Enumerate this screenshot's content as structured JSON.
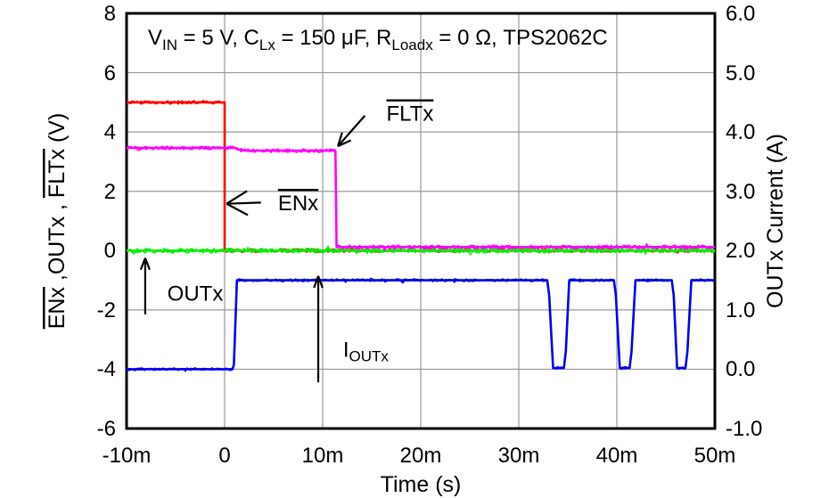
{
  "chart_data": {
    "type": "line",
    "title_parts": [
      {
        "text": "V"
      },
      {
        "text": "IN",
        "sub": true
      },
      {
        "text": " = 5 V, C"
      },
      {
        "text": "Lx",
        "sub": true
      },
      {
        "text": " = 150 μF, R"
      },
      {
        "text": "Loadx",
        "sub": true
      },
      {
        "text": " = 0 Ω, TPS2062C"
      }
    ],
    "x_axis": {
      "label": "Time (s)",
      "ticks": [
        "-10m",
        "0",
        "10m",
        "20m",
        "30m",
        "40m",
        "50m"
      ],
      "tick_values_ms": [
        -10,
        0,
        10,
        20,
        30,
        40,
        50
      ],
      "gridline_values_ms": [
        0,
        10,
        20,
        30,
        40
      ],
      "range_ms": [
        -10,
        50
      ]
    },
    "y_axis_left": {
      "label_parts": [
        {
          "text": "ENx",
          "overline": true
        },
        {
          "text": " ,OUTx , "
        },
        {
          "text": "FLTx",
          "overline": true
        },
        {
          "text": " (V)"
        }
      ],
      "ticks": [
        "8",
        "6",
        "4",
        "2",
        "0",
        "-2",
        "-4",
        "-6"
      ],
      "tick_values": [
        8,
        6,
        4,
        2,
        0,
        -2,
        -4,
        -6
      ],
      "gridline_values": [
        6,
        4,
        2,
        0,
        -2,
        -4
      ],
      "range": [
        -6,
        8
      ]
    },
    "y_axis_right": {
      "label": "OUTx Current (A)",
      "ticks": [
        "6.0",
        "5.0",
        "4.0",
        "3.0",
        "2.0",
        "1.0",
        "0.0",
        "-1.0"
      ],
      "tick_values": [
        6,
        5,
        4,
        3,
        2,
        1,
        0,
        -1
      ],
      "range": [
        -1,
        6
      ]
    },
    "series": [
      {
        "name": "ENx",
        "color": "#ff0000",
        "axis": "left",
        "noise": 2.2,
        "seed": 11,
        "points": [
          [
            -10,
            5.0
          ],
          [
            0,
            5.0
          ],
          [
            0,
            0.0
          ],
          [
            50,
            0.0
          ]
        ]
      },
      {
        "name": "OUTx",
        "color": "#00ee00",
        "axis": "left",
        "noise": 2.8,
        "seed": 23,
        "points": [
          [
            -10,
            0.0
          ],
          [
            50,
            0.0
          ]
        ]
      },
      {
        "name": "FLTx",
        "color": "#ff00ff",
        "axis": "left",
        "noise": 2.2,
        "seed": 37,
        "points": [
          [
            -10,
            3.46
          ],
          [
            1.1,
            3.46
          ],
          [
            1.5,
            3.4
          ],
          [
            2.2,
            3.37
          ],
          [
            11.3,
            3.37
          ],
          [
            11.42,
            0.12
          ],
          [
            50,
            0.12
          ]
        ]
      },
      {
        "name": "IOUTx",
        "color": "#0000ee",
        "axis": "right",
        "noise": 1.7,
        "seed": 51,
        "points": [
          [
            -10,
            0.0
          ],
          [
            0.8,
            0.0
          ],
          [
            0.95,
            0.08
          ],
          [
            1.25,
            1.5
          ],
          [
            32.9,
            1.5
          ],
          [
            33.1,
            1.25
          ],
          [
            33.5,
            0.02
          ],
          [
            34.6,
            0.02
          ],
          [
            34.8,
            0.3
          ],
          [
            35.15,
            1.5
          ],
          [
            39.7,
            1.5
          ],
          [
            39.9,
            1.25
          ],
          [
            40.3,
            0.02
          ],
          [
            41.3,
            0.02
          ],
          [
            41.5,
            0.3
          ],
          [
            41.9,
            1.5
          ],
          [
            45.6,
            1.5
          ],
          [
            45.8,
            1.25
          ],
          [
            46.15,
            0.02
          ],
          [
            47.0,
            0.02
          ],
          [
            47.2,
            0.3
          ],
          [
            47.6,
            1.5
          ],
          [
            50,
            1.5
          ]
        ]
      }
    ],
    "annotations": [
      {
        "id": "outx",
        "label": "OUTx",
        "overline": false,
        "axis": "left",
        "label_t": -3.0,
        "label_v": -1.45,
        "arrow": {
          "from_t": -8.1,
          "from_v": -2.15,
          "to_t": -8.1,
          "to_v": -0.25
        },
        "barb_len": 14,
        "barb_deg": 21
      },
      {
        "id": "enx",
        "label": "ENx",
        "overline": true,
        "axis": "left",
        "label_t": 7.5,
        "label_v": 1.6,
        "arrow": {
          "from_t": 3.7,
          "from_v": 1.62,
          "to_t": 0.2,
          "to_v": 1.58
        },
        "barb_len": 27,
        "barb_deg": 30
      },
      {
        "id": "fltx",
        "label": "FLTx",
        "overline": true,
        "axis": "left",
        "label_t": 18.9,
        "label_v": 4.62,
        "arrow": {
          "from_t": 14.3,
          "from_v": 4.55,
          "to_t": 11.55,
          "to_v": 3.52
        },
        "barb_len": 16,
        "barb_deg": 24
      },
      {
        "id": "ioutx",
        "label": "I",
        "sub": "OUTx",
        "overline": false,
        "axis": "right",
        "label_t": 14.4,
        "label_v": 0.33,
        "arrow": {
          "from_t": 9.55,
          "from_v": -0.22,
          "to_t": 9.55,
          "to_v": 1.57
        },
        "barb_len": 14,
        "barb_deg": 20
      }
    ],
    "colors": {
      "frame": "#000000",
      "grid": "#9a9a9a",
      "background": "#ffffff",
      "text": "#000000"
    }
  }
}
